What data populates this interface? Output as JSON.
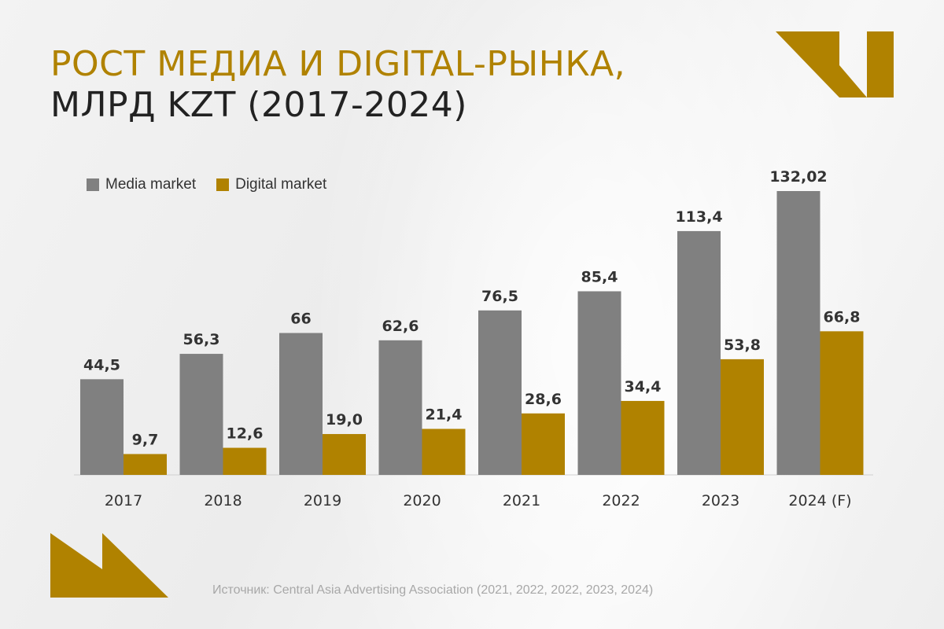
{
  "title": {
    "line1": "РОСТ МЕДИА И DIGITAL-РЫНКА,",
    "line2": "МЛРД KZT (2017-2024)"
  },
  "colors": {
    "media": "#808080",
    "digital": "#b08200",
    "accent": "#b08200",
    "value_label": "#333333",
    "axis_label": "#333333"
  },
  "source_text": "Источник: Central Asia Advertising Association  (2021, 2022, 2022, 2023, 2024)",
  "chart_data": {
    "type": "bar",
    "categories": [
      "2017",
      "2018",
      "2019",
      "2020",
      "2021",
      "2022",
      "2023",
      "2024 (F)"
    ],
    "series": [
      {
        "name": "Media market",
        "values": [
          44.5,
          56.3,
          66,
          62.6,
          76.5,
          85.4,
          113.4,
          132.02
        ],
        "labels": [
          "44,5",
          "56,3",
          "66",
          "62,6",
          "76,5",
          "85,4",
          "113,4",
          "132,02"
        ]
      },
      {
        "name": "Digital market",
        "values": [
          9.7,
          12.6,
          19.0,
          21.4,
          28.6,
          34.4,
          53.8,
          66.8
        ],
        "labels": [
          "9,7",
          "12,6",
          "19,0",
          "21,4",
          "28,6",
          "34,4",
          "53,8",
          "66,8"
        ]
      }
    ],
    "ylim": [
      0,
      132.02
    ],
    "grid": false,
    "legend_position": "top-left"
  }
}
